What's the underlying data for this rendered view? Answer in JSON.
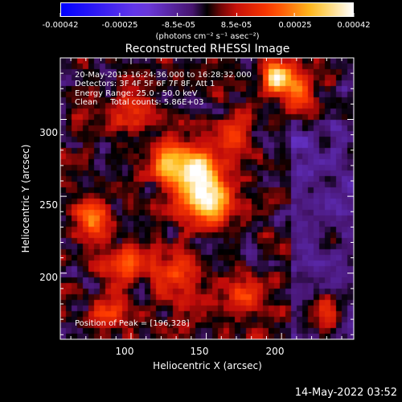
{
  "colorbar": {
    "ticks": [
      "-0.00042",
      "-0.00025",
      "-8.5e-05",
      "8.5e-05",
      "0.00025",
      "0.00042"
    ],
    "tick_values": [
      -0.00042,
      -0.00025,
      -8.5e-05,
      8.5e-05,
      0.00025,
      0.00042
    ],
    "range": [
      -0.00042,
      0.00042
    ],
    "unit_label": "(photons cm⁻² s⁻¹ asec⁻²)"
  },
  "chart_data": {
    "type": "heatmap",
    "title": "Reconstructed RHESSI Image",
    "xlabel": "Heliocentric X (arcsec)",
    "ylabel": "Heliocentric Y (arcsec)",
    "xlim": [
      53,
      248
    ],
    "ylim": [
      157,
      340
    ],
    "x_ticks": [
      100,
      150,
      200
    ],
    "y_ticks": [
      200,
      250,
      300
    ],
    "peak": [
      196,
      328
    ],
    "sources": [
      {
        "x": 144,
        "y": 262,
        "sx": 12,
        "sy": 14,
        "amp": 0.9
      },
      {
        "x": 155,
        "y": 244,
        "sx": 10,
        "sy": 10,
        "amp": 0.6
      },
      {
        "x": 125,
        "y": 272,
        "sx": 10,
        "sy": 10,
        "amp": 0.5
      },
      {
        "x": 196,
        "y": 328,
        "sx": 6,
        "sy": 6,
        "amp": 1.0
      },
      {
        "x": 210,
        "y": 318,
        "sx": 8,
        "sy": 8,
        "amp": 0.55
      },
      {
        "x": 75,
        "y": 235,
        "sx": 8,
        "sy": 10,
        "amp": 0.55
      },
      {
        "x": 95,
        "y": 205,
        "sx": 9,
        "sy": 8,
        "amp": 0.5
      },
      {
        "x": 130,
        "y": 200,
        "sx": 10,
        "sy": 12,
        "amp": 0.45
      },
      {
        "x": 175,
        "y": 185,
        "sx": 8,
        "sy": 8,
        "amp": 0.5
      },
      {
        "x": 230,
        "y": 175,
        "sx": 8,
        "sy": 8,
        "amp": 0.45
      },
      {
        "x": 100,
        "y": 305,
        "sx": 10,
        "sy": 8,
        "amp": 0.35
      },
      {
        "x": 170,
        "y": 290,
        "sx": 8,
        "sy": 10,
        "amp": 0.35
      },
      {
        "x": 85,
        "y": 175,
        "sx": 8,
        "sy": 7,
        "amp": 0.4
      }
    ]
  },
  "annotation": {
    "lines": [
      "20-May-2013 16:24:36.000 to 16:28:32.000",
      "Detectors: 3F 4F 5F 6F 7F 8F, Att 1",
      "Energy Range: 25.0 - 50.0 keV",
      "Clean     Total counts: 5.86E+03"
    ],
    "peak_text": "Position of Peak = [196,328]"
  },
  "footer": {
    "date": "14-May-2022 03:52"
  }
}
